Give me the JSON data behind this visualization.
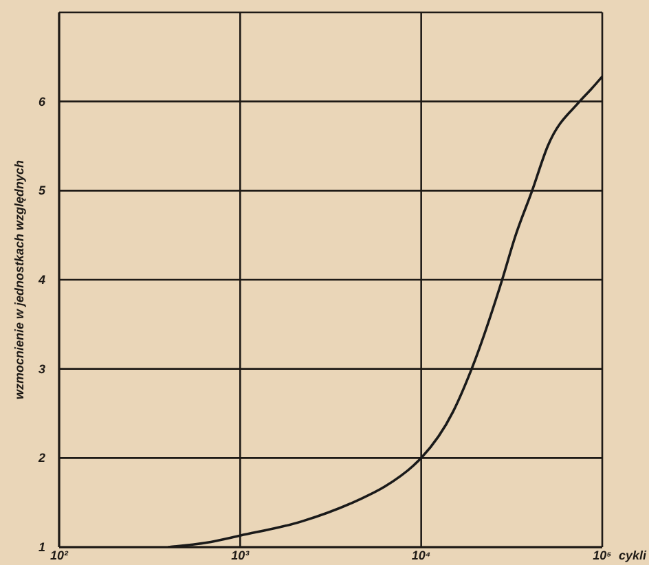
{
  "chart_data": {
    "type": "line",
    "xlabel": "cykli",
    "ylabel": "wzmocnienie w jednostkach względnych",
    "x": [
      400,
      650,
      1000,
      2200,
      4400,
      6300,
      9000,
      10000,
      15000,
      19000,
      28000,
      33000,
      41000,
      50000,
      75000,
      87000,
      100000
    ],
    "values": [
      1.0,
      1.05,
      1.13,
      1.29,
      1.52,
      1.68,
      1.91,
      2.0,
      2.52,
      3.0,
      4.0,
      4.48,
      5.0,
      5.5,
      6.0,
      6.14,
      6.28
    ],
    "color": "#1a1a1a",
    "log": "x",
    "xlim": [
      100,
      100000
    ],
    "xticks": [
      {
        "value": 100,
        "label": "10²"
      },
      {
        "value": 1000,
        "label": "10³"
      },
      {
        "value": 10000,
        "label": "10⁴"
      },
      {
        "value": 100000,
        "label": "10⁵"
      }
    ],
    "ylim": [
      1,
      7
    ],
    "yticks": [
      1,
      2,
      3,
      4,
      5,
      6
    ],
    "grid": true
  }
}
